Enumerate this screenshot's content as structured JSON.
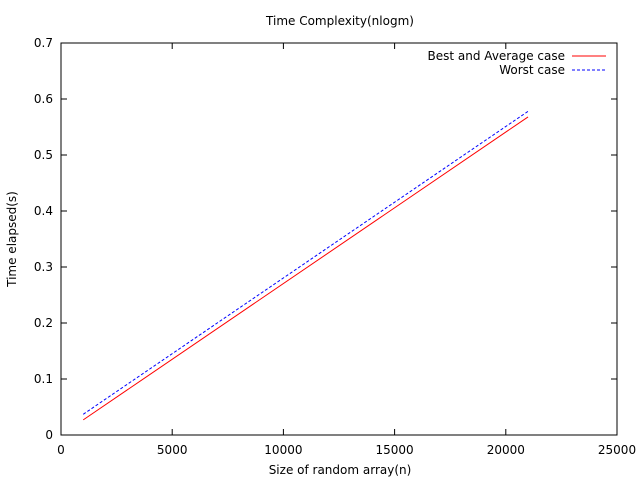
{
  "chart_data": {
    "type": "line",
    "title": "Time Complexity(nlogm)",
    "xlabel": "Size of random array(n)",
    "ylabel": "Time elapsed(s)",
    "xlim": [
      0,
      25000
    ],
    "ylim": [
      0,
      0.7
    ],
    "xticks": [
      "0",
      "5000",
      "10000",
      "15000",
      "20000",
      "25000"
    ],
    "yticks": [
      "0",
      "0.1",
      "0.2",
      "0.3",
      "0.4",
      "0.5",
      "0.6",
      "0.7"
    ],
    "grid": false,
    "legend_position": "top-right",
    "series": [
      {
        "name": "Best and Average case",
        "color": "#ff0000",
        "style": "solid",
        "x": [
          1000,
          21000
        ],
        "y": [
          0.027,
          0.568
        ]
      },
      {
        "name": "Worst case",
        "color": "#0000ff",
        "style": "dashed",
        "x": [
          1000,
          21000
        ],
        "y": [
          0.037,
          0.578
        ]
      }
    ]
  }
}
